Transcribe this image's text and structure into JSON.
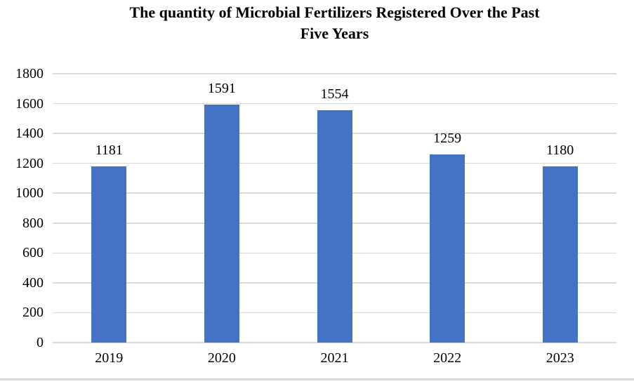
{
  "chart_data": {
    "type": "bar",
    "title": "The quantity of Microbial Fertilizers Registered Over the Past Five Years",
    "title_lines": [
      "The quantity of Microbial Fertilizers Registered Over the Past",
      "Five Years"
    ],
    "categories": [
      "2019",
      "2020",
      "2021",
      "2022",
      "2023"
    ],
    "values": [
      1181,
      1591,
      1554,
      1259,
      1180
    ],
    "data_labels": [
      "1181",
      "1591",
      "1554",
      "1259",
      "1180"
    ],
    "xlabel": "",
    "ylabel": "",
    "ylim": [
      0,
      1800
    ],
    "yticks": [
      0,
      200,
      400,
      600,
      800,
      1000,
      1200,
      1400,
      1600,
      1800
    ],
    "grid": true,
    "legend": "none",
    "colors": {
      "bar": "#4472C4",
      "gridline": "#D9D9D9",
      "axis_line": "#D9D9D9",
      "text": "#000000",
      "bottom_border": "#D9D9D9",
      "background": "#FFFFFF"
    }
  }
}
